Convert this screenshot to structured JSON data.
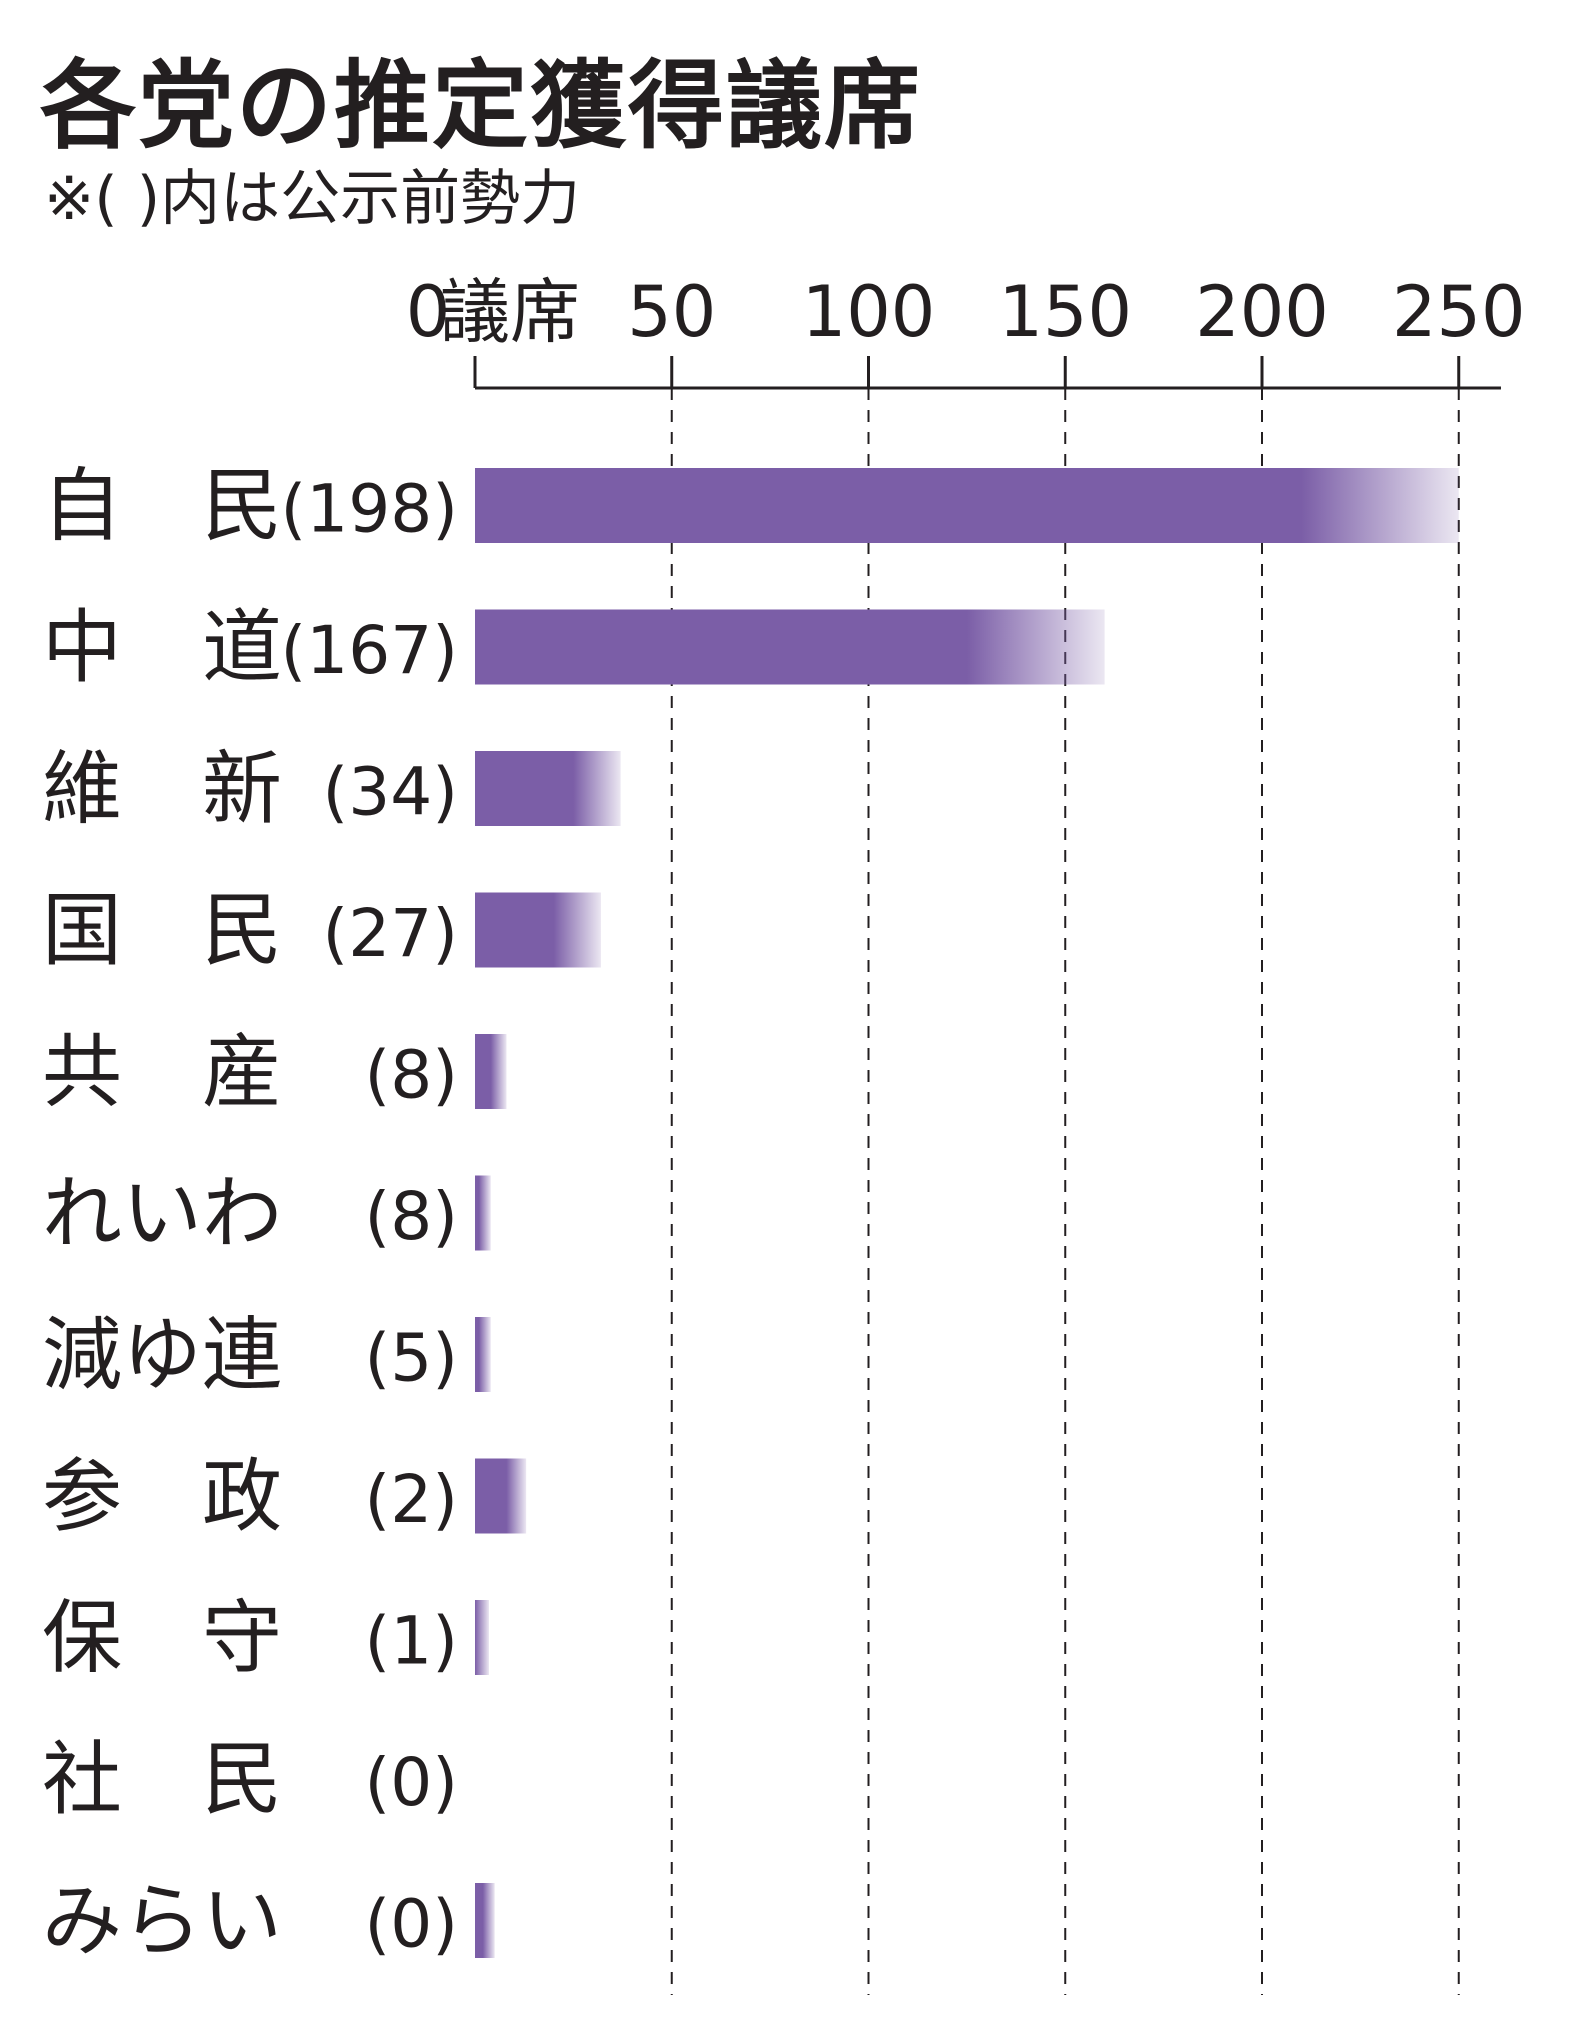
{
  "title": "各党の推定獲得議席",
  "subtitle": "※(   )内は公示前勢力",
  "chart_data": {
    "type": "bar",
    "orientation": "horizontal",
    "title": "各党の推定獲得議席",
    "subtitle": "※(   )内は公示前勢力",
    "unit": "議席",
    "xlim": [
      0,
      262
    ],
    "ticks": [
      {
        "value": 0,
        "label": "0"
      },
      {
        "value": 50,
        "label": "50"
      },
      {
        "value": 100,
        "label": "100"
      },
      {
        "value": 150,
        "label": "150"
      },
      {
        "value": 200,
        "label": "200"
      },
      {
        "value": 250,
        "label": "250"
      }
    ],
    "grid": "vertical dashed",
    "bar_color": "#7b5ea7",
    "parties": [
      {
        "name": "自 民",
        "prior": "(198)",
        "low": 210,
        "high": 250
      },
      {
        "name": "中 道",
        "prior": "(167)",
        "low": 125,
        "high": 160
      },
      {
        "name": "維 新",
        "prior": "(34)",
        "low": 25,
        "high": 37
      },
      {
        "name": "国 民",
        "prior": "(27)",
        "low": 20,
        "high": 32
      },
      {
        "name": "共 産",
        "prior": "(8)",
        "low": 4,
        "high": 8
      },
      {
        "name": "れいわ",
        "prior": "(8)",
        "low": 1,
        "high": 4
      },
      {
        "name": "減ゆ連",
        "prior": "(5)",
        "low": 1,
        "high": 4
      },
      {
        "name": "参 政",
        "prior": "(2)",
        "low": 8,
        "high": 13
      },
      {
        "name": "保 守",
        "prior": "(1)",
        "low": 0,
        "high": 3
      },
      {
        "name": "社 民",
        "prior": "(0)",
        "low": 0,
        "high": 0
      },
      {
        "name": "みらい",
        "prior": "(0)",
        "low": 2,
        "high": 5
      }
    ]
  }
}
